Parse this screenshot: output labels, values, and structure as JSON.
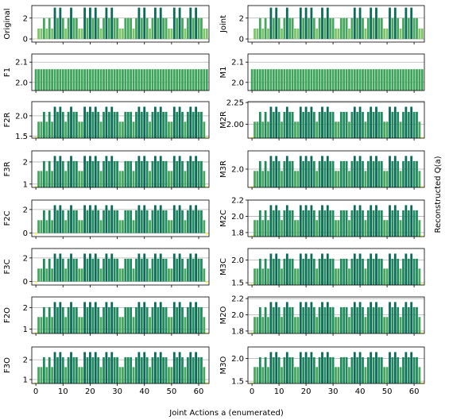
{
  "figure": {
    "xlabel": "Joint Actions a (enumerated)",
    "ylabel_right": "Reconstructed Q(a)"
  },
  "chart_data": [
    {
      "type": "bar",
      "panel": "left",
      "row": 0,
      "ylabel": "Original",
      "ylim": [
        -0.3,
        3.2
      ],
      "yticks": [
        0,
        2
      ],
      "grid": true,
      "x": "0..63",
      "values": [
        0,
        1,
        1,
        2,
        1,
        2,
        1,
        3,
        2,
        3,
        2,
        1,
        2,
        3,
        2,
        2,
        1,
        1,
        3,
        2,
        3,
        2,
        3,
        2,
        1,
        2,
        3,
        2,
        3,
        2,
        2,
        1,
        1,
        2,
        2,
        2,
        1,
        2,
        3,
        2,
        3,
        2,
        1,
        2,
        3,
        2,
        3,
        2,
        2,
        1,
        1,
        3,
        2,
        3,
        2,
        1,
        2,
        3,
        2,
        3,
        2,
        2,
        1,
        1
      ]
    },
    {
      "type": "bar",
      "panel": "right",
      "row": 0,
      "ylabel": "Joint",
      "ylim": [
        -0.3,
        3.2
      ],
      "yticks": [
        0,
        2
      ],
      "grid": true,
      "x": "0..63",
      "values": [
        0,
        1,
        1,
        2,
        1,
        2,
        1,
        3,
        2,
        3,
        2,
        1,
        2,
        3,
        2,
        2,
        1,
        1,
        3,
        2,
        3,
        2,
        3,
        2,
        1,
        2,
        3,
        2,
        3,
        2,
        2,
        1,
        1,
        2,
        2,
        2,
        1,
        2,
        3,
        2,
        3,
        2,
        1,
        2,
        3,
        2,
        3,
        2,
        2,
        1,
        1,
        3,
        2,
        3,
        2,
        1,
        2,
        3,
        2,
        3,
        2,
        2,
        1,
        1
      ]
    },
    {
      "type": "bar",
      "panel": "left",
      "row": 1,
      "ylabel": "F1",
      "ylim": [
        1.96,
        2.14
      ],
      "yticks": [
        2.0,
        2.1
      ],
      "ticklabels": [
        "2.0",
        "2.1"
      ],
      "grid": true,
      "x": "0..63",
      "constant": 2.065
    },
    {
      "type": "bar",
      "panel": "right",
      "row": 1,
      "ylabel": "M1",
      "ylim": [
        1.96,
        2.14
      ],
      "yticks": [
        2.0,
        2.1
      ],
      "ticklabels": [
        "2.0",
        "2.1"
      ],
      "grid": true,
      "x": "0..63",
      "constant": 2.065
    },
    {
      "type": "bar",
      "panel": "left",
      "row": 2,
      "ylabel": "F2R",
      "ylim": [
        1.45,
        2.35
      ],
      "yticks": [
        1.5,
        2.0
      ],
      "ticklabels": [
        "1.5",
        "2.0"
      ],
      "grid": true,
      "x": "0..63"
    },
    {
      "type": "bar",
      "panel": "right",
      "row": 2,
      "ylabel": "M2R",
      "ylim": [
        1.84,
        2.26
      ],
      "yticks": [
        2.0,
        2.25
      ],
      "ticklabels": [
        "2.00",
        "2.25"
      ],
      "grid": true,
      "x": "0..63"
    },
    {
      "type": "bar",
      "panel": "left",
      "row": 3,
      "ylabel": "F3R",
      "ylim": [
        0.85,
        2.5
      ],
      "yticks": [
        1,
        2
      ],
      "grid": true,
      "x": "0..63"
    },
    {
      "type": "bar",
      "panel": "right",
      "row": 3,
      "ylabel": "M3R",
      "ylim": [
        1.8,
        2.2
      ],
      "yticks": [
        2.0
      ],
      "ticklabels": [
        "2.0"
      ],
      "grid": true,
      "x": "0..63"
    },
    {
      "type": "bar",
      "panel": "left",
      "row": 4,
      "ylabel": "F2C",
      "ylim": [
        -0.3,
        2.8
      ],
      "yticks": [
        0,
        2
      ],
      "grid": true,
      "x": "0..63"
    },
    {
      "type": "bar",
      "panel": "right",
      "row": 4,
      "ylabel": "M2C",
      "ylim": [
        1.75,
        2.2
      ],
      "yticks": [
        1.8,
        2.0,
        2.2
      ],
      "ticklabels": [
        "1.8",
        "2.0",
        "2.2"
      ],
      "grid": true,
      "x": "0..63"
    },
    {
      "type": "bar",
      "panel": "left",
      "row": 5,
      "ylabel": "F3C",
      "ylim": [
        -0.3,
        2.8
      ],
      "yticks": [
        0,
        2
      ],
      "grid": true,
      "x": "0..63"
    },
    {
      "type": "bar",
      "panel": "right",
      "row": 5,
      "ylabel": "M3C",
      "ylim": [
        1.45,
        2.25
      ],
      "yticks": [
        1.5,
        2.0
      ],
      "ticklabels": [
        "1.5",
        "2.0"
      ],
      "grid": true,
      "x": "0..63"
    },
    {
      "type": "bar",
      "panel": "left",
      "row": 6,
      "ylabel": "F2O",
      "ylim": [
        0.8,
        2.5
      ],
      "yticks": [
        1,
        2
      ],
      "grid": true,
      "x": "0..63"
    },
    {
      "type": "bar",
      "panel": "right",
      "row": 6,
      "ylabel": "M2O",
      "ylim": [
        1.77,
        2.22
      ],
      "yticks": [
        1.8,
        2.0,
        2.2
      ],
      "ticklabels": [
        "1.8",
        "2.0",
        "2.2"
      ],
      "grid": true,
      "x": "0..63"
    },
    {
      "type": "bar",
      "panel": "left",
      "row": 7,
      "ylabel": "F3O",
      "ylim": [
        0.8,
        2.65
      ],
      "yticks": [
        1,
        2
      ],
      "grid": true,
      "x": "0..63"
    },
    {
      "type": "bar",
      "panel": "right",
      "row": 7,
      "ylabel": "M3O",
      "ylim": [
        1.45,
        2.25
      ],
      "yticks": [
        1.5,
        2.0
      ],
      "ticklabels": [
        "1.5",
        "2.0"
      ],
      "grid": true,
      "x": "0..63"
    }
  ],
  "xticks": [
    0,
    10,
    20,
    30,
    40,
    50,
    60
  ],
  "colors": {
    "grid": "#b0b0b0",
    "axis": "#000000",
    "cmap": [
      "#ffff66",
      "#c4e57a",
      "#7dc36a",
      "#46a65e",
      "#1f8a5e",
      "#0c6b58"
    ]
  }
}
